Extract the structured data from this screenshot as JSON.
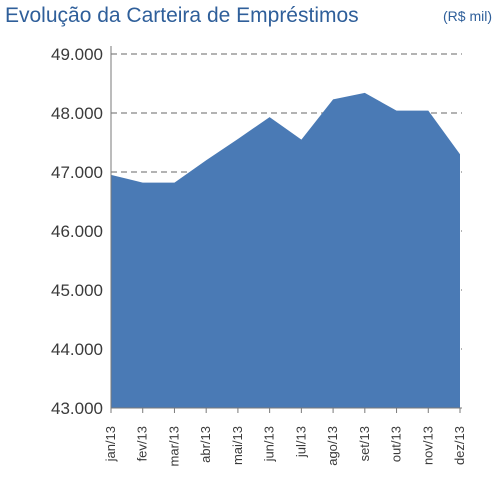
{
  "chart_data": {
    "type": "area",
    "title": "Evolução da Carteira de Empréstimos",
    "unit": "(R$ mil)",
    "categories": [
      "jan/13",
      "fev/13",
      "mar/13",
      "abr/13",
      "mai/13",
      "jun/13",
      "jul/13",
      "ago/13",
      "set/13",
      "out/13",
      "nov/13",
      "dez/13"
    ],
    "series": [
      {
        "values": [
          46950,
          46820,
          46820,
          47200,
          47560,
          47930,
          47550,
          48230,
          48340,
          48040,
          48040,
          47300
        ]
      }
    ],
    "ylim": [
      43000,
      49000
    ],
    "yticks": [
      43000,
      44000,
      45000,
      46000,
      47000,
      48000,
      49000
    ],
    "ytick_labels": [
      "43.000",
      "44.000",
      "45.000",
      "46.000",
      "47.000",
      "48.000",
      "49.000"
    ],
    "grid": "dashed horizontal",
    "colors": {
      "fill": "#4a7ab5",
      "title": "#2f5f9a",
      "grid": "#9a9a9a"
    }
  }
}
